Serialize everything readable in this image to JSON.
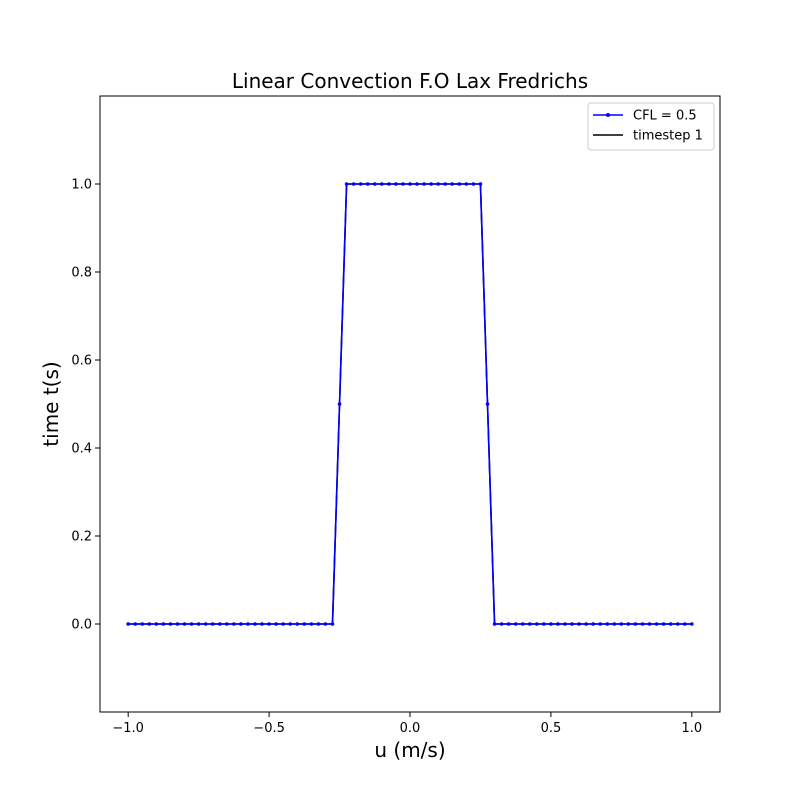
{
  "chart_data": {
    "type": "line",
    "title": "Linear Convection F.O Lax Fredrichs",
    "xlabel": "u (m/s)",
    "ylabel": "time t(s)",
    "xlim": [
      -1.1,
      1.1
    ],
    "ylim": [
      -0.2,
      1.2
    ],
    "xticks": [
      -1.0,
      -0.5,
      0.0,
      0.5,
      1.0
    ],
    "xtick_labels": [
      "−1.0",
      "−0.5",
      "0.0",
      "0.5",
      "1.0"
    ],
    "yticks": [
      0.0,
      0.2,
      0.4,
      0.6,
      0.8,
      1.0
    ],
    "ytick_labels": [
      "0.0",
      "0.2",
      "0.4",
      "0.6",
      "0.8",
      "1.0"
    ],
    "grid": false,
    "legend_position": "top-right",
    "series": [
      {
        "name": "CFL = 0.5",
        "color": "#0000ff",
        "marker": "dot",
        "x_start": -1.0,
        "x_step": 0.025,
        "values": [
          0,
          0,
          0,
          0,
          0,
          0,
          0,
          0,
          0,
          0,
          0,
          0,
          0,
          0,
          0,
          0,
          0,
          0,
          0,
          0,
          0,
          0,
          0,
          0,
          0,
          0,
          0,
          0,
          0,
          0,
          0.5,
          1,
          1,
          1,
          1,
          1,
          1,
          1,
          1,
          1,
          1,
          1,
          1,
          1,
          1,
          1,
          1,
          1,
          1,
          1,
          1,
          0.5,
          0,
          0,
          0,
          0,
          0,
          0,
          0,
          0,
          0,
          0,
          0,
          0,
          0,
          0,
          0,
          0,
          0,
          0,
          0,
          0,
          0,
          0,
          0,
          0,
          0,
          0,
          0,
          0,
          0
        ]
      },
      {
        "name": "timestep 1",
        "color": "#000000",
        "marker": "none",
        "x_start": -1.0,
        "x_step": 0.025,
        "values": [
          0,
          0,
          0,
          0,
          0,
          0,
          0,
          0,
          0,
          0,
          0,
          0,
          0,
          0,
          0,
          0,
          0,
          0,
          0,
          0,
          0,
          0,
          0,
          0,
          0,
          0,
          0,
          0,
          0,
          0,
          0.5,
          1,
          1,
          1,
          1,
          1,
          1,
          1,
          1,
          1,
          1,
          1,
          1,
          1,
          1,
          1,
          1,
          1,
          1,
          1,
          1,
          0.5,
          0,
          0,
          0,
          0,
          0,
          0,
          0,
          0,
          0,
          0,
          0,
          0,
          0,
          0,
          0,
          0,
          0,
          0,
          0,
          0,
          0,
          0,
          0,
          0,
          0,
          0,
          0,
          0,
          0
        ]
      }
    ]
  }
}
